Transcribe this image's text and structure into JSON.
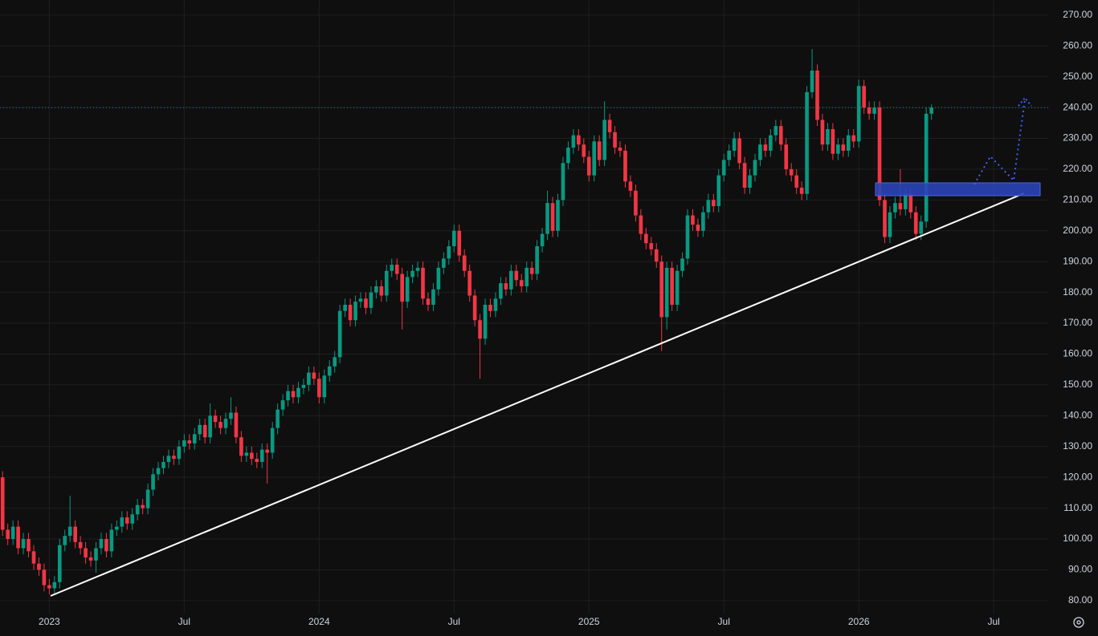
{
  "chart_data": {
    "type": "candlestick",
    "up_color": "#089981",
    "down_color": "#f23645",
    "grid": true,
    "ylim": [
      75.8,
      274.9
    ],
    "yticks": [
      {
        "value": 80,
        "label": "80.00"
      },
      {
        "value": 90,
        "label": "90.00"
      },
      {
        "value": 100,
        "label": "100.00"
      },
      {
        "value": 110,
        "label": "110.00"
      },
      {
        "value": 120,
        "label": "120.00"
      },
      {
        "value": 130,
        "label": "130.00"
      },
      {
        "value": 140,
        "label": "140.00"
      },
      {
        "value": 150,
        "label": "150.00"
      },
      {
        "value": 160,
        "label": "160.00"
      },
      {
        "value": 170,
        "label": "170.00"
      },
      {
        "value": 180,
        "label": "180.00"
      },
      {
        "value": 190,
        "label": "190.00"
      },
      {
        "value": 200,
        "label": "200.00"
      },
      {
        "value": 210,
        "label": "210.00"
      },
      {
        "value": 220,
        "label": "220.00"
      },
      {
        "value": 230,
        "label": "230.00"
      },
      {
        "value": 240,
        "label": "240.00"
      },
      {
        "value": 250,
        "label": "250.00"
      },
      {
        "value": 260,
        "label": "260.00"
      },
      {
        "value": 270,
        "label": "270.00"
      }
    ],
    "categories": [
      null,
      null,
      null,
      null,
      null,
      null,
      null,
      null,
      null,
      "2023",
      null,
      null,
      null,
      null,
      null,
      null,
      null,
      null,
      null,
      null,
      null,
      null,
      null,
      null,
      null,
      null,
      null,
      null,
      null,
      null,
      null,
      null,
      null,
      null,
      null,
      "Jul",
      null,
      null,
      null,
      null,
      null,
      null,
      null,
      null,
      null,
      null,
      null,
      null,
      null,
      null,
      null,
      null,
      null,
      null,
      null,
      null,
      null,
      null,
      null,
      null,
      null,
      "2024",
      null,
      null,
      null,
      null,
      null,
      null,
      null,
      null,
      null,
      null,
      null,
      null,
      null,
      null,
      null,
      null,
      null,
      null,
      null,
      null,
      null,
      null,
      null,
      null,
      null,
      "Jul",
      null,
      null,
      null,
      null,
      null,
      null,
      null,
      null,
      null,
      null,
      null,
      null,
      null,
      null,
      null,
      null,
      null,
      null,
      null,
      null,
      null,
      null,
      null,
      null,
      null,
      "2025",
      null,
      null,
      null,
      null,
      null,
      null,
      null,
      null,
      null,
      null,
      null,
      null,
      null,
      null,
      null,
      null,
      null,
      null,
      null,
      null,
      null,
      null,
      null,
      null,
      null,
      "Jul",
      null,
      null,
      null,
      null,
      null,
      null,
      null,
      null,
      null,
      null,
      null,
      null,
      null,
      null,
      null,
      null,
      null,
      null,
      null,
      null,
      null,
      null,
      null,
      null,
      null,
      "2026",
      null,
      null,
      null,
      null,
      null,
      null,
      null,
      null,
      null,
      null,
      null,
      null,
      null,
      null,
      null,
      null,
      null,
      null,
      null,
      null,
      null,
      null,
      null,
      null,
      null,
      "Jul",
      null,
      null,
      null,
      null,
      null,
      null,
      null,
      null,
      null,
      null
    ],
    "open": [
      120,
      103,
      100,
      104,
      97,
      100,
      96,
      92,
      90,
      85,
      84,
      86,
      98,
      101,
      104,
      99,
      97,
      94,
      93,
      97,
      100,
      96,
      103,
      104,
      107,
      105,
      108,
      111,
      110,
      116,
      121,
      123,
      125,
      127,
      126,
      130,
      132,
      131,
      134,
      137,
      133,
      140,
      138,
      136,
      139,
      141,
      133,
      127,
      128,
      126,
      125,
      129,
      128,
      136,
      142,
      145,
      148,
      146,
      149,
      150,
      154,
      152,
      146,
      153,
      156,
      159,
      174,
      176,
      171,
      177,
      178,
      175,
      180,
      182,
      179,
      187,
      189,
      186,
      177,
      185,
      187,
      188,
      178,
      176,
      181,
      188,
      191,
      195,
      200,
      192,
      187,
      179,
      171,
      165,
      176,
      174,
      178,
      183,
      181,
      187,
      184,
      182,
      188,
      186,
      195,
      199,
      209,
      200,
      210,
      222,
      227,
      231,
      228,
      224,
      218,
      229,
      223,
      236,
      232,
      227,
      226,
      216,
      213,
      205,
      199,
      196,
      194,
      190,
      172,
      188,
      176,
      187,
      191,
      205,
      202,
      200,
      206,
      210,
      208,
      218,
      223,
      226,
      230,
      222,
      214,
      218,
      223,
      228,
      226,
      231,
      234,
      228,
      220,
      218,
      214,
      212,
      245,
      252,
      236,
      228,
      233,
      225,
      228,
      226,
      231,
      229,
      247,
      240,
      238,
      240,
      210,
      198,
      206,
      209,
      207,
      212,
      206,
      199,
      203,
      238,
      null,
      null,
      null,
      null,
      null,
      null,
      null,
      null,
      null,
      null,
      null,
      null,
      null,
      null,
      null,
      null,
      null,
      null,
      null,
      null,
      null,
      null
    ],
    "high": [
      122,
      105,
      106,
      106,
      102,
      102,
      98,
      94,
      92,
      87,
      88,
      100,
      103,
      114,
      106,
      101,
      99,
      96,
      99,
      102,
      102,
      105,
      106,
      109,
      109,
      110,
      113,
      113,
      118,
      123,
      125,
      127,
      129,
      129,
      132,
      134,
      134,
      136,
      139,
      139,
      144,
      142,
      140,
      141,
      146,
      143,
      135,
      130,
      130,
      128,
      131,
      131,
      138,
      144,
      147,
      150,
      150,
      151,
      152,
      156,
      156,
      154,
      155,
      158,
      161,
      176,
      178,
      178,
      179,
      180,
      180,
      182,
      184,
      184,
      189,
      191,
      191,
      188,
      187,
      189,
      190,
      190,
      180,
      183,
      190,
      193,
      197,
      202,
      202,
      194,
      189,
      181,
      173,
      178,
      178,
      180,
      185,
      185,
      189,
      189,
      186,
      190,
      190,
      197,
      201,
      213,
      211,
      212,
      224,
      229,
      233,
      233,
      230,
      226,
      231,
      231,
      242,
      238,
      234,
      229,
      228,
      218,
      215,
      207,
      201,
      198,
      196,
      192,
      190,
      190,
      189,
      193,
      207,
      207,
      204,
      208,
      212,
      212,
      220,
      225,
      228,
      232,
      232,
      224,
      220,
      225,
      230,
      230,
      233,
      236,
      236,
      230,
      222,
      220,
      216,
      247,
      259,
      254,
      238,
      235,
      235,
      230,
      230,
      233,
      233,
      249,
      249,
      242,
      242,
      242,
      212,
      208,
      211,
      220,
      214,
      214,
      208,
      205,
      240,
      241,
      null,
      null,
      null,
      null,
      null,
      null,
      null,
      null,
      null,
      null,
      null,
      null,
      null,
      null,
      null,
      null,
      null,
      null,
      null,
      null,
      null,
      null
    ],
    "low": [
      101,
      98,
      98,
      95,
      95,
      94,
      90,
      88,
      83,
      82,
      82,
      84,
      96,
      99,
      97,
      95,
      92,
      91,
      89,
      95,
      94,
      94,
      101,
      102,
      103,
      103,
      106,
      108,
      108,
      114,
      119,
      121,
      123,
      124,
      124,
      128,
      129,
      129,
      132,
      131,
      131,
      136,
      134,
      134,
      137,
      131,
      125,
      125,
      124,
      123,
      123,
      118,
      126,
      134,
      140,
      143,
      144,
      144,
      147,
      148,
      150,
      144,
      144,
      151,
      154,
      157,
      172,
      169,
      169,
      175,
      173,
      173,
      178,
      177,
      177,
      185,
      184,
      168,
      175,
      183,
      185,
      176,
      174,
      174,
      179,
      186,
      189,
      193,
      190,
      185,
      177,
      169,
      152,
      163,
      172,
      172,
      176,
      179,
      179,
      182,
      180,
      180,
      184,
      184,
      193,
      197,
      198,
      198,
      208,
      220,
      225,
      226,
      222,
      216,
      216,
      221,
      221,
      230,
      225,
      224,
      214,
      211,
      203,
      197,
      194,
      192,
      188,
      161,
      168,
      174,
      174,
      185,
      189,
      200,
      198,
      198,
      204,
      206,
      206,
      216,
      221,
      224,
      220,
      212,
      212,
      216,
      221,
      224,
      224,
      229,
      226,
      218,
      216,
      212,
      210,
      210,
      243,
      234,
      226,
      226,
      223,
      223,
      224,
      224,
      227,
      227,
      238,
      236,
      236,
      208,
      196,
      196,
      204,
      205,
      205,
      204,
      197,
      197,
      201,
      236,
      null,
      null,
      null,
      null,
      null,
      null,
      null,
      null,
      null,
      null,
      null,
      null,
      null,
      null,
      null,
      null,
      null,
      null,
      null,
      null,
      null,
      null
    ],
    "close": [
      103,
      100,
      104,
      97,
      100,
      96,
      92,
      90,
      85,
      84,
      86,
      98,
      101,
      104,
      99,
      97,
      94,
      93,
      97,
      100,
      96,
      103,
      104,
      107,
      105,
      108,
      111,
      110,
      116,
      121,
      123,
      125,
      127,
      126,
      130,
      132,
      131,
      134,
      137,
      133,
      140,
      138,
      136,
      139,
      141,
      133,
      127,
      128,
      126,
      125,
      129,
      128,
      136,
      142,
      145,
      148,
      146,
      149,
      150,
      154,
      152,
      146,
      153,
      156,
      159,
      174,
      176,
      171,
      177,
      178,
      175,
      180,
      182,
      179,
      187,
      189,
      186,
      177,
      185,
      187,
      188,
      178,
      176,
      181,
      188,
      191,
      195,
      200,
      192,
      187,
      179,
      171,
      165,
      176,
      174,
      178,
      183,
      181,
      187,
      184,
      182,
      188,
      186,
      195,
      199,
      209,
      200,
      210,
      222,
      227,
      231,
      228,
      224,
      218,
      229,
      223,
      236,
      232,
      227,
      226,
      216,
      213,
      205,
      199,
      196,
      194,
      190,
      172,
      188,
      176,
      187,
      191,
      205,
      202,
      200,
      206,
      210,
      208,
      218,
      223,
      226,
      230,
      222,
      214,
      218,
      223,
      228,
      226,
      231,
      234,
      228,
      220,
      218,
      214,
      212,
      245,
      252,
      236,
      228,
      233,
      225,
      228,
      226,
      231,
      229,
      247,
      240,
      238,
      240,
      210,
      198,
      206,
      209,
      207,
      212,
      206,
      199,
      203,
      238,
      240,
      null,
      null,
      null,
      null,
      null,
      null,
      null,
      null,
      null,
      null,
      null,
      null,
      null,
      null,
      null,
      null,
      null,
      null,
      null,
      null,
      null,
      null
    ]
  }
}
